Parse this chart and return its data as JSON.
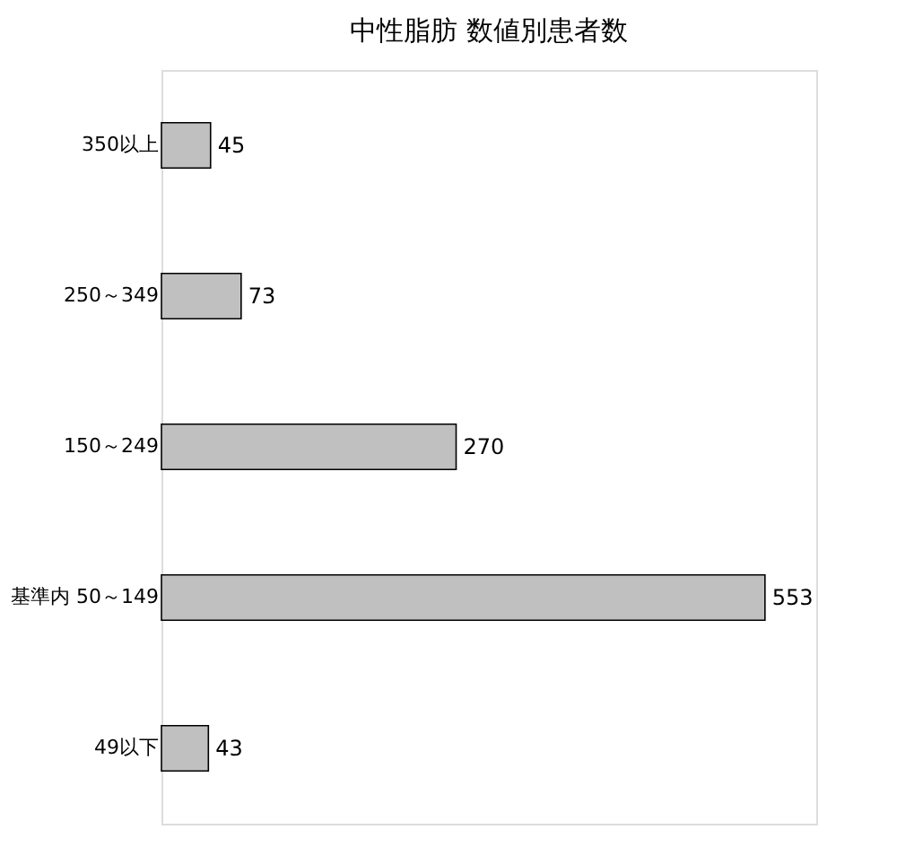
{
  "chart_data": {
    "type": "bar",
    "orientation": "horizontal",
    "title": "中性脂肪 数値別患者数",
    "categories": [
      "350以上",
      "250～349",
      "150～249",
      "基準内 50～149",
      "49以下"
    ],
    "values": [
      45,
      73,
      270,
      553,
      43
    ],
    "color": "#c0c0c0",
    "data_labels": true,
    "grid": false,
    "tick_labels": "y"
  }
}
